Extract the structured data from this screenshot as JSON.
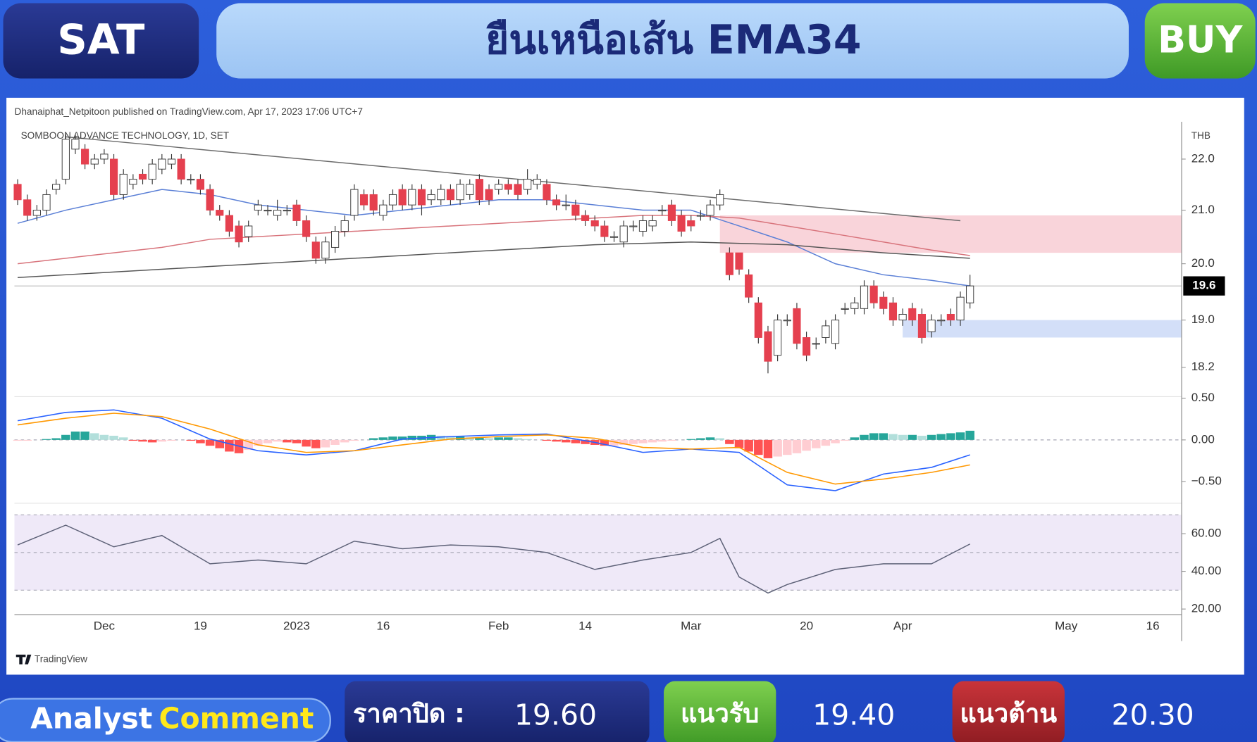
{
  "header": {
    "symbol": "SAT",
    "headline": "ยืนเหนือเส้น EMA34",
    "signal": "BUY"
  },
  "chart_data": [
    {
      "type": "candlestick",
      "title": "SOMBOON ADVANCE TECHNOLOGY, 1D, SET",
      "subtitle": "Dhanaiphat_Netpitoon published on TradingView.com, Apr 17, 2023 17:06 UTC+7",
      "brand": "TradingView",
      "y_unit": "THB",
      "log_scale": true,
      "ylim": [
        17.72,
        22.76
      ],
      "yticks": [
        {
          "value": 22,
          "label": "22.0"
        },
        {
          "value": 21,
          "label": "21.0"
        },
        {
          "value": 20,
          "label": "20.0"
        },
        {
          "value": 19,
          "label": "19.0"
        },
        18.2
      ],
      "categories": [
        null,
        null,
        null,
        null,
        null,
        null,
        null,
        null,
        null,
        "Dec",
        null,
        null,
        null,
        null,
        null,
        null,
        null,
        null,
        null,
        "19",
        null,
        null,
        null,
        null,
        null,
        null,
        null,
        null,
        null,
        "2023",
        null,
        null,
        null,
        null,
        null,
        null,
        null,
        null,
        "16",
        null,
        null,
        null,
        null,
        null,
        null,
        null,
        null,
        null,
        null,
        null,
        "Feb",
        null,
        null,
        null,
        null,
        null,
        null,
        null,
        null,
        "14",
        null,
        null,
        null,
        null,
        null,
        null,
        null,
        null,
        null,
        null,
        "Mar",
        null,
        null,
        null,
        null,
        null,
        null,
        null,
        null,
        null,
        null,
        null,
        "20",
        null,
        null,
        null,
        null,
        null,
        null,
        null,
        null,
        null,
        "Apr",
        null,
        null,
        null,
        null,
        null,
        null,
        null,
        null,
        null,
        null,
        null,
        null,
        null,
        null,
        null,
        null,
        "May",
        null,
        null,
        null,
        null,
        null,
        null,
        null,
        null,
        "16",
        null,
        null,
        null
      ],
      "open": [
        21.5,
        21.2,
        20.9,
        21.0,
        21.4,
        21.6,
        22.2,
        22.2,
        21.9,
        22.0,
        22.0,
        21.3,
        21.5,
        21.7,
        21.6,
        21.8,
        21.9,
        22.0,
        21.6,
        21.6,
        21.4,
        21.0,
        20.9,
        20.7,
        20.5,
        21.0,
        21.0,
        20.9,
        21.0,
        21.1,
        20.8,
        20.4,
        20.1,
        20.3,
        20.6,
        20.9,
        21.3,
        21.3,
        20.9,
        21.1,
        21.4,
        21.1,
        21.4,
        21.2,
        21.2,
        21.4,
        21.2,
        21.3,
        21.6,
        21.4,
        21.4,
        21.5,
        21.5,
        21.4,
        21.5,
        21.5,
        21.2,
        21.1,
        21.1,
        20.9,
        20.8,
        20.7,
        20.5,
        20.4,
        20.7,
        20.6,
        20.7,
        21.0,
        21.1,
        20.9,
        20.8,
        20.9,
        20.9,
        21.1,
        20.2,
        20.2,
        19.8,
        19.3,
        18.8,
        18.4,
        19.0,
        19.2,
        18.7,
        18.6,
        18.7,
        18.6,
        19.2,
        19.2,
        19.2,
        19.6,
        19.4,
        19.3,
        19.0,
        19.2,
        19.1,
        18.8,
        19.0,
        19.1,
        19.0,
        19.3,
        null,
        null,
        null,
        null,
        null,
        null,
        null,
        null,
        null,
        null,
        null,
        null,
        null,
        null,
        null,
        null,
        null,
        null,
        null,
        null,
        null,
        null
      ],
      "high": [
        21.6,
        21.3,
        21.1,
        21.4,
        21.6,
        22.5,
        22.5,
        22.3,
        22.1,
        22.2,
        22.1,
        21.8,
        21.7,
        21.8,
        22.0,
        22.1,
        22.1,
        22.1,
        21.7,
        21.7,
        21.5,
        21.1,
        21.0,
        20.8,
        20.8,
        21.2,
        21.1,
        21.2,
        21.1,
        21.2,
        20.9,
        20.5,
        20.5,
        20.7,
        20.9,
        21.5,
        21.4,
        21.4,
        21.2,
        21.4,
        21.5,
        21.5,
        21.5,
        21.4,
        21.5,
        21.5,
        21.6,
        21.6,
        21.7,
        21.5,
        21.6,
        21.6,
        21.6,
        21.8,
        21.7,
        21.6,
        21.3,
        21.3,
        21.2,
        21.0,
        20.9,
        20.8,
        20.6,
        20.8,
        20.8,
        20.9,
        20.9,
        21.1,
        21.2,
        21.0,
        20.9,
        21.0,
        21.2,
        21.4,
        20.3,
        20.2,
        19.9,
        19.4,
        18.9,
        19.1,
        19.1,
        19.3,
        18.8,
        18.7,
        19.0,
        19.1,
        19.3,
        19.4,
        19.7,
        19.7,
        19.5,
        19.4,
        19.2,
        19.3,
        19.2,
        19.1,
        19.1,
        19.2,
        19.5,
        19.8,
        null,
        null,
        null,
        null,
        null,
        null,
        null,
        null,
        null,
        null,
        null,
        null,
        null,
        null,
        null,
        null,
        null,
        null,
        null,
        null,
        null,
        null
      ],
      "low": [
        21.1,
        20.8,
        20.8,
        20.9,
        21.3,
        21.5,
        22.1,
        21.8,
        21.8,
        21.9,
        21.2,
        21.2,
        21.4,
        21.5,
        21.5,
        21.7,
        21.8,
        21.5,
        21.5,
        21.3,
        20.9,
        20.8,
        20.5,
        20.3,
        20.4,
        20.9,
        20.9,
        20.8,
        20.9,
        20.7,
        20.4,
        20.0,
        20.0,
        20.2,
        20.5,
        20.8,
        21.0,
        20.9,
        20.8,
        21.0,
        21.0,
        21.0,
        20.9,
        21.1,
        21.1,
        21.1,
        21.1,
        21.2,
        21.1,
        21.1,
        21.3,
        21.3,
        21.2,
        21.3,
        21.4,
        21.1,
        21.0,
        21.0,
        20.8,
        20.7,
        20.6,
        20.4,
        20.4,
        20.3,
        20.6,
        20.5,
        20.6,
        20.9,
        20.7,
        20.5,
        20.6,
        20.8,
        20.8,
        21.0,
        19.7,
        19.8,
        19.3,
        18.6,
        18.1,
        18.3,
        18.9,
        18.5,
        18.3,
        18.5,
        18.6,
        18.5,
        19.1,
        19.1,
        19.1,
        19.2,
        19.1,
        18.9,
        18.9,
        18.9,
        18.6,
        18.7,
        18.9,
        18.9,
        18.9,
        19.2,
        null,
        null,
        null,
        null,
        null,
        null,
        null,
        null,
        null,
        null,
        null,
        null,
        null,
        null,
        null,
        null,
        null,
        null,
        null,
        null,
        null,
        null
      ],
      "close": [
        21.2,
        20.9,
        21.0,
        21.3,
        21.5,
        22.4,
        22.4,
        21.9,
        22.0,
        22.1,
        21.3,
        21.7,
        21.6,
        21.6,
        21.9,
        22.0,
        22.0,
        21.6,
        21.6,
        21.4,
        21.0,
        20.9,
        20.6,
        20.4,
        20.7,
        21.1,
        21.0,
        21.0,
        21.0,
        20.8,
        20.5,
        20.1,
        20.4,
        20.6,
        20.8,
        21.4,
        21.1,
        21.0,
        21.1,
        21.3,
        21.1,
        21.4,
        21.1,
        21.3,
        21.4,
        21.2,
        21.5,
        21.5,
        21.2,
        21.2,
        21.5,
        21.4,
        21.3,
        21.6,
        21.6,
        21.2,
        21.1,
        21.1,
        20.9,
        20.8,
        20.7,
        20.5,
        20.5,
        20.7,
        20.7,
        20.8,
        20.8,
        21.0,
        20.8,
        20.6,
        20.7,
        20.9,
        21.1,
        21.3,
        19.8,
        19.9,
        19.4,
        18.7,
        18.3,
        19.0,
        19.0,
        18.6,
        18.4,
        18.6,
        18.9,
        19.0,
        19.2,
        19.3,
        19.6,
        19.3,
        19.2,
        19.0,
        19.1,
        19.0,
        18.7,
        19.0,
        19.0,
        19.0,
        19.4,
        19.6,
        null,
        null,
        null,
        null,
        null,
        null,
        null,
        null,
        null,
        null,
        null,
        null,
        null,
        null,
        null,
        null,
        null,
        null,
        null,
        null,
        null,
        null
      ],
      "up_color": "#ffffff",
      "down_color": "#e5404f",
      "wick_color": "#333333",
      "lines": [
        {
          "color": "#5a7fd6",
          "x": [
            0,
            5,
            10,
            15,
            20,
            25,
            30,
            35,
            40,
            45,
            50,
            55,
            60,
            65,
            70,
            75,
            80,
            85,
            90,
            95,
            99
          ],
          "values": [
            20.75,
            21.0,
            21.2,
            21.4,
            21.3,
            21.1,
            21.0,
            20.9,
            21.0,
            21.1,
            21.2,
            21.2,
            21.1,
            21.0,
            21.0,
            20.7,
            20.4,
            20.0,
            19.8,
            19.7,
            19.6
          ]
        },
        {
          "color": "#d8737b",
          "x": [
            0,
            5,
            10,
            15,
            20,
            25,
            30,
            35,
            40,
            45,
            50,
            55,
            60,
            65,
            70,
            75,
            80,
            85,
            90,
            95,
            99
          ],
          "values": [
            20.0,
            20.1,
            20.2,
            20.3,
            20.45,
            20.5,
            20.55,
            20.6,
            20.65,
            20.7,
            20.75,
            20.8,
            20.85,
            20.9,
            20.9,
            20.85,
            20.7,
            20.55,
            20.4,
            20.25,
            20.15
          ]
        },
        {
          "color": "#555555",
          "x": [
            0,
            10,
            20,
            30,
            40,
            50,
            60,
            70,
            80,
            90,
            99
          ],
          "values": [
            19.75,
            19.85,
            19.95,
            20.05,
            20.15,
            20.25,
            20.35,
            20.4,
            20.35,
            20.2,
            20.1
          ]
        },
        {
          "color": "#6b6b6b",
          "x": [
            5,
            98
          ],
          "values": [
            22.45,
            20.8
          ]
        }
      ],
      "zones": [
        {
          "color": "#f9d4da",
          "x": [
            73,
            121
          ],
          "range": [
            20.2,
            20.9
          ]
        },
        {
          "color": "#d3dff8",
          "x": [
            92,
            121
          ],
          "range": [
            18.7,
            19.0
          ]
        }
      ],
      "last_price": 19.6
    },
    {
      "type": "macd",
      "ylim": [
        -0.76,
        0.5
      ],
      "yticks": [
        {
          "value": 0.5,
          "label": "0.50"
        },
        {
          "value": 0,
          "label": "0.00"
        },
        {
          "value": -0.5,
          "label": "−0.50"
        }
      ],
      "dashed_levels": [
        0
      ],
      "histogram": [
        -0.01,
        -0.01,
        0,
        0.01,
        0.02,
        0.06,
        0.1,
        0.1,
        0.08,
        0.06,
        0.05,
        0.03,
        -0.01,
        -0.02,
        -0.03,
        -0.02,
        -0.01,
        0,
        -0.01,
        -0.04,
        -0.07,
        -0.1,
        -0.14,
        -0.16,
        -0.12,
        -0.07,
        -0.04,
        -0.02,
        -0.03,
        -0.04,
        -0.08,
        -0.1,
        -0.09,
        -0.06,
        -0.03,
        -0.01,
        0,
        0.02,
        0.03,
        0.04,
        0.04,
        0.05,
        0.05,
        0.06,
        0.05,
        0.04,
        0.04,
        0.03,
        0.03,
        0.02,
        0.03,
        0.03,
        0.02,
        0.01,
        0,
        -0.01,
        -0.02,
        -0.03,
        -0.04,
        -0.05,
        -0.06,
        -0.07,
        -0.07,
        -0.06,
        -0.05,
        -0.04,
        -0.03,
        -0.02,
        -0.01,
        0,
        0.01,
        0.02,
        0.03,
        0.02,
        -0.05,
        -0.1,
        -0.14,
        -0.18,
        -0.22,
        -0.2,
        -0.18,
        -0.16,
        -0.13,
        -0.1,
        -0.07,
        -0.04,
        -0.01,
        0.03,
        0.06,
        0.08,
        0.08,
        0.07,
        0.06,
        0.06,
        0.05,
        0.06,
        0.07,
        0.08,
        0.09,
        0.11,
        null,
        null,
        null,
        null,
        null,
        null,
        null,
        null,
        null,
        null,
        null,
        null,
        null,
        null,
        null,
        null,
        null,
        null,
        null,
        null,
        null,
        null
      ],
      "histogram_colors": [
        "#26a69a",
        "#b2dfdb",
        "#ffcdd2",
        "#ff5252"
      ],
      "series": [
        {
          "color": "#2962ff",
          "x": [
            0,
            5,
            10,
            15,
            20,
            25,
            30,
            35,
            40,
            45,
            50,
            55,
            60,
            65,
            70,
            75,
            80,
            85,
            90,
            95,
            99
          ],
          "values": [
            0.23,
            0.33,
            0.36,
            0.26,
            0.01,
            -0.13,
            -0.18,
            -0.13,
            0.01,
            0.04,
            0.06,
            0.07,
            -0.03,
            -0.15,
            -0.11,
            -0.15,
            -0.54,
            -0.61,
            -0.41,
            -0.33,
            -0.18
          ]
        },
        {
          "color": "#ff9800",
          "x": [
            0,
            5,
            10,
            15,
            20,
            25,
            30,
            35,
            40,
            45,
            50,
            55,
            60,
            65,
            70,
            75,
            80,
            85,
            90,
            95,
            99
          ],
          "values": [
            0.18,
            0.26,
            0.32,
            0.28,
            0.13,
            -0.06,
            -0.15,
            -0.13,
            -0.06,
            0.01,
            0.04,
            0.06,
            0.02,
            -0.09,
            -0.11,
            -0.09,
            -0.39,
            -0.53,
            -0.47,
            -0.39,
            -0.3
          ]
        }
      ]
    },
    {
      "type": "rsi",
      "ylim": [
        17.9,
        75.3
      ],
      "yticks": [
        {
          "value": 60,
          "label": "60.00"
        },
        {
          "value": 40,
          "label": "40.00"
        },
        {
          "value": 20,
          "label": "20.00"
        }
      ],
      "band": [
        30,
        70
      ],
      "band_color": "#efe9f8",
      "dashed_levels": [
        30,
        50,
        70
      ],
      "series": [
        {
          "color": "#5d6177",
          "x": [
            0,
            5,
            10,
            15,
            20,
            25,
            30,
            35,
            40,
            45,
            50,
            55,
            60,
            65,
            70,
            73,
            75,
            78,
            80,
            85,
            90,
            95,
            99
          ],
          "values": [
            54,
            64.5,
            53,
            59,
            44,
            46,
            44,
            56,
            52,
            54,
            53,
            50,
            41,
            46,
            50,
            57.5,
            37,
            28.5,
            33,
            41,
            44,
            44,
            54.5
          ]
        }
      ]
    }
  ],
  "footer": {
    "comment_label": "Analyst",
    "comment_highlight": "Comment",
    "close_label": "ราคาปิด :",
    "close_value": "19.60",
    "support_label": "แนวรับ",
    "support_value": "19.40",
    "resistance_label": "แนวต้าน",
    "resistance_value": "20.30"
  }
}
